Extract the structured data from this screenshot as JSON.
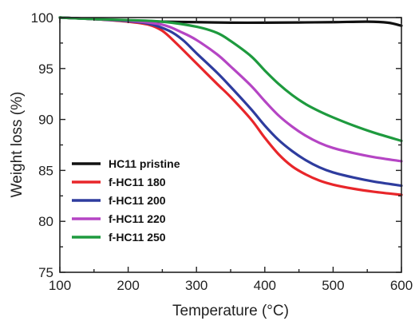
{
  "chart_data": {
    "type": "line",
    "xlabel": "Temperature (°C)",
    "ylabel": "Weight loss (%)",
    "xlim": [
      100,
      600
    ],
    "ylim": [
      75,
      100
    ],
    "xticks": [
      100,
      200,
      300,
      400,
      500,
      600
    ],
    "yticks": [
      75,
      80,
      85,
      90,
      95,
      100
    ],
    "grid": false,
    "legend_position": "lower-left",
    "series": [
      {
        "name": "HC11 pristine",
        "color": "#111111",
        "x": [
          100,
          150,
          200,
          250,
          300,
          350,
          400,
          450,
          500,
          550,
          580,
          600
        ],
        "y": [
          100.0,
          99.85,
          99.7,
          99.6,
          99.55,
          99.5,
          99.5,
          99.52,
          99.55,
          99.6,
          99.5,
          99.2
        ]
      },
      {
        "name": "f-HC11 180",
        "color": "#e8262a",
        "x": [
          100,
          150,
          200,
          230,
          250,
          270,
          300,
          330,
          350,
          380,
          400,
          420,
          440,
          460,
          480,
          500,
          530,
          560,
          600
        ],
        "y": [
          100.0,
          99.85,
          99.6,
          99.3,
          98.7,
          97.5,
          95.5,
          93.5,
          92.2,
          90.0,
          88.2,
          86.6,
          85.4,
          84.6,
          84.0,
          83.6,
          83.2,
          82.9,
          82.6
        ]
      },
      {
        "name": "f-HC11 200",
        "color": "#2e3c9e",
        "x": [
          100,
          150,
          200,
          230,
          260,
          280,
          300,
          330,
          350,
          380,
          400,
          420,
          440,
          460,
          480,
          500,
          530,
          560,
          600
        ],
        "y": [
          100.0,
          99.85,
          99.65,
          99.4,
          98.7,
          97.8,
          96.5,
          94.6,
          93.2,
          91.0,
          89.4,
          88.0,
          86.9,
          86.0,
          85.3,
          84.8,
          84.3,
          83.9,
          83.5
        ]
      },
      {
        "name": "f-HC11 220",
        "color": "#b545c4",
        "x": [
          100,
          150,
          200,
          250,
          280,
          300,
          330,
          350,
          380,
          400,
          420,
          440,
          460,
          480,
          500,
          530,
          560,
          600
        ],
        "y": [
          100.0,
          99.85,
          99.7,
          99.3,
          98.5,
          97.8,
          96.4,
          95.2,
          93.3,
          91.8,
          90.4,
          89.3,
          88.4,
          87.7,
          87.2,
          86.7,
          86.3,
          85.9
        ]
      },
      {
        "name": "f-HC11 250",
        "color": "#1e9a3e",
        "x": [
          100,
          150,
          200,
          250,
          300,
          330,
          350,
          380,
          400,
          420,
          440,
          460,
          480,
          500,
          530,
          560,
          600
        ],
        "y": [
          100.0,
          99.85,
          99.75,
          99.6,
          99.1,
          98.5,
          97.7,
          96.2,
          94.8,
          93.5,
          92.4,
          91.5,
          90.8,
          90.2,
          89.4,
          88.7,
          87.9
        ]
      }
    ]
  }
}
